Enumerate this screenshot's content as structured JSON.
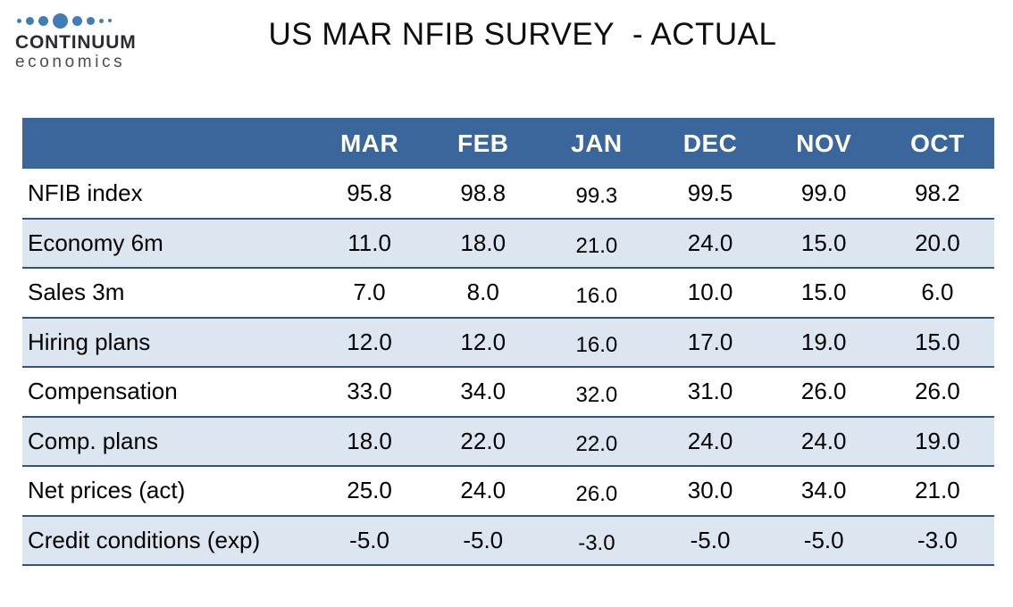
{
  "logo": {
    "name": "CONTINUUM",
    "subtitle": "economics",
    "dot_color": "#3f7db4",
    "dot_sizes": [
      5,
      9,
      11,
      17,
      11,
      9,
      5,
      4
    ],
    "icon": "logo-dots-icon"
  },
  "title": "US MAR NFIB SURVEY  - ACTUAL",
  "table": {
    "columns": [
      "MAR",
      "FEB",
      "JAN",
      "DEC",
      "NOV",
      "OCT"
    ],
    "rows": [
      {
        "label": "NFIB index",
        "values": [
          "95.8",
          "98.8",
          "99.3",
          "99.5",
          "99.0",
          "98.2"
        ]
      },
      {
        "label": "Economy 6m",
        "values": [
          "11.0",
          "18.0",
          "21.0",
          "24.0",
          "15.0",
          "20.0"
        ]
      },
      {
        "label": "Sales 3m",
        "values": [
          "7.0",
          "8.0",
          "16.0",
          "10.0",
          "15.0",
          "6.0"
        ]
      },
      {
        "label": "Hiring plans",
        "values": [
          "12.0",
          "12.0",
          "16.0",
          "17.0",
          "19.0",
          "15.0"
        ]
      },
      {
        "label": "Compensation",
        "values": [
          "33.0",
          "34.0",
          "32.0",
          "31.0",
          "26.0",
          "26.0"
        ]
      },
      {
        "label": "Comp. plans",
        "values": [
          "18.0",
          "22.0",
          "22.0",
          "24.0",
          "24.0",
          "19.0"
        ]
      },
      {
        "label": "Net prices (act)",
        "values": [
          "25.0",
          "24.0",
          "26.0",
          "30.0",
          "34.0",
          "21.0"
        ]
      },
      {
        "label": "Credit conditions (exp)",
        "values": [
          "-5.0",
          "-5.0",
          "-3.0",
          "-5.0",
          "-5.0",
          "-3.0"
        ]
      }
    ],
    "colors": {
      "header_bg": "#3b669c",
      "header_text": "#ffffff",
      "band_bg": "#dce6f1",
      "band_border": "#33527e"
    }
  },
  "chart_data": {
    "type": "table",
    "title": "US MAR NFIB SURVEY - ACTUAL",
    "categories": [
      "MAR",
      "FEB",
      "JAN",
      "DEC",
      "NOV",
      "OCT"
    ],
    "series": [
      {
        "name": "NFIB index",
        "values": [
          95.8,
          98.8,
          99.3,
          99.5,
          99.0,
          98.2
        ]
      },
      {
        "name": "Economy 6m",
        "values": [
          11.0,
          18.0,
          21.0,
          24.0,
          15.0,
          20.0
        ]
      },
      {
        "name": "Sales 3m",
        "values": [
          7.0,
          8.0,
          16.0,
          10.0,
          15.0,
          6.0
        ]
      },
      {
        "name": "Hiring plans",
        "values": [
          12.0,
          12.0,
          16.0,
          17.0,
          19.0,
          15.0
        ]
      },
      {
        "name": "Compensation",
        "values": [
          33.0,
          34.0,
          32.0,
          31.0,
          26.0,
          26.0
        ]
      },
      {
        "name": "Comp. plans",
        "values": [
          18.0,
          22.0,
          22.0,
          24.0,
          24.0,
          19.0
        ]
      },
      {
        "name": "Net prices (act)",
        "values": [
          25.0,
          24.0,
          26.0,
          30.0,
          34.0,
          21.0
        ]
      },
      {
        "name": "Credit conditions (exp)",
        "values": [
          -5.0,
          -5.0,
          -3.0,
          -5.0,
          -5.0,
          -3.0
        ]
      }
    ],
    "layout": {
      "banded_rows": true,
      "header_position": "top",
      "label_column": "left"
    }
  }
}
